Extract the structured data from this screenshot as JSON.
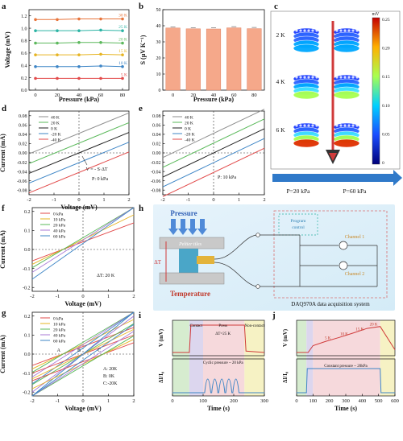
{
  "panels": {
    "a": {
      "letter": "a",
      "xlabel": "Pressure (kPa)",
      "ylabel": "Voltage (mV)",
      "xticks": [
        "0",
        "20",
        "40",
        "60",
        "80"
      ],
      "yticks": [
        "0.0",
        "0.2",
        "0.4",
        "0.6",
        "0.8",
        "1.0",
        "1.2"
      ],
      "series": [
        {
          "name": "30 K",
          "value": 1.14,
          "color": "#e8743b"
        },
        {
          "name": "25 K",
          "value": 0.96,
          "color": "#2bb3a4"
        },
        {
          "name": "20 K",
          "value": 0.76,
          "color": "#5cb85c"
        },
        {
          "name": "15 K",
          "value": 0.57,
          "color": "#e6b422"
        },
        {
          "name": "10 K",
          "value": 0.38,
          "color": "#3d85c6"
        },
        {
          "name": "5 K",
          "value": 0.19,
          "color": "#e24a4a"
        }
      ]
    },
    "b": {
      "letter": "b",
      "xlabel": "Pressure (kPa)",
      "ylabel": "S (μV K⁻¹)",
      "xticks": [
        "0",
        "20",
        "40",
        "60",
        "80"
      ],
      "yticks": [
        "0",
        "10",
        "20",
        "30",
        "40",
        "50"
      ],
      "values": [
        38.6,
        38.1,
        38.0,
        38.7,
        38.2
      ],
      "bar_color": "#f5a88a"
    },
    "c": {
      "letter": "c",
      "rows": [
        "2 K",
        "4 K",
        "6 K"
      ],
      "colorbar_title": "mV",
      "colorbar_ticks": [
        "0.25",
        "0.20",
        "0.15",
        "0.10",
        "0.05",
        "0"
      ],
      "left_caption": "P=20 kPa",
      "right_caption": "P=60 kPa"
    },
    "d": {
      "letter": "d",
      "xlabel": "Voltage (mV)",
      "ylabel": "Current (mA)",
      "xticks": [
        "-2",
        "-1",
        "0",
        "1",
        "2"
      ],
      "yticks": [
        "-0.08",
        "-0.06",
        "-0.04",
        "-0.02",
        "0.00",
        "0.02",
        "0.04",
        "0.06",
        "0.08"
      ],
      "legend": [
        "40 K",
        "20 K",
        "0 K",
        "-20 K",
        "-40 K"
      ],
      "annotation1": "V = - S·ΔT",
      "annotation2": "P: 0 kPa"
    },
    "e": {
      "letter": "e",
      "xlabel": "Voltage (mV)",
      "yticks": [
        "-0.08",
        "-0.06",
        "-0.04",
        "-0.02",
        "0.00",
        "0.02",
        "0.04",
        "0.06",
        "0.08"
      ],
      "xticks": [
        "-2",
        "-1",
        "0",
        "1",
        "2"
      ],
      "legend": [
        "40 K",
        "20 K",
        "0 K",
        "-20 K",
        "-40 K"
      ],
      "annotation": "P: 10 kPa"
    },
    "f": {
      "letter": "f",
      "xlabel": "Voltage (mV)",
      "ylabel": "Current (mA)",
      "xticks": [
        "-2",
        "-1",
        "0",
        "1",
        "2"
      ],
      "yticks": [
        "-0.2",
        "-0.1",
        "0.0",
        "0.1",
        "0.2"
      ],
      "legend": [
        "0 kPa",
        "10 kPa",
        "20 kPa",
        "40 kPa",
        "60 kPa"
      ],
      "annotation": "ΔT: 20 K"
    },
    "g": {
      "letter": "g",
      "xlabel": "Voltage (mV)",
      "ylabel": "Current (mA)",
      "xticks": [
        "-2",
        "-1",
        "0",
        "1",
        "2"
      ],
      "yticks": [
        "-0.2",
        "-0.1",
        "0.0",
        "0.1",
        "0.2"
      ],
      "legend": [
        "0 kPa",
        "10 kPa",
        "20 kPa",
        "40 kPa",
        "60 kPa"
      ],
      "point_labels": [
        "A",
        "B",
        "C"
      ],
      "notes": [
        "A: 20K",
        "B: 0K",
        "C:-20K"
      ]
    },
    "h": {
      "letter": "h",
      "pressure": "Pressure",
      "peltier": "Peltier tiles",
      "delta_t": "ΔT",
      "temperature": "Temperature",
      "program": [
        "Program",
        "control"
      ],
      "channel1": "Channel 1",
      "channel2": "Channel 2",
      "system": "DAQ970A data acquisition system"
    },
    "i": {
      "letter": "i",
      "xlabel": "Time (s)",
      "ylabel_top": "V (mV)",
      "ylabel_bottom": "ΔI/I₀",
      "xticks": [
        "0",
        "100",
        "200",
        "300"
      ],
      "phases": [
        "Contact",
        "Press",
        "Non-contact"
      ],
      "top_note": "ΔT=25 K",
      "bottom_note": "Cyclic pressure ~ 20 kPa"
    },
    "j": {
      "letter": "j",
      "xlabel": "Time (s)",
      "ylabel_top": "V (mV)",
      "ylabel_bottom": "ΔI/I₀",
      "xticks": [
        "0",
        "100",
        "200",
        "300",
        "400",
        "500",
        "600"
      ],
      "steps": [
        "5 K",
        "10 K",
        "15 K",
        "20 K"
      ],
      "bottom_note": "Constant pressure ~ 20kPa"
    }
  },
  "chart_data": [
    {
      "type": "line",
      "panel": "a",
      "x": [
        0,
        20,
        40,
        60,
        80
      ],
      "xlabel": "Pressure (kPa)",
      "ylabel": "Voltage (mV)",
      "ylim": [
        0,
        1.3
      ],
      "series": [
        {
          "name": "30 K",
          "values": [
            1.14,
            1.14,
            1.15,
            1.15,
            1.15
          ]
        },
        {
          "name": "25 K",
          "values": [
            0.96,
            0.96,
            0.96,
            0.97,
            0.96
          ]
        },
        {
          "name": "20 K",
          "values": [
            0.76,
            0.76,
            0.77,
            0.77,
            0.76
          ]
        },
        {
          "name": "15 K",
          "values": [
            0.57,
            0.57,
            0.57,
            0.58,
            0.57
          ]
        },
        {
          "name": "10 K",
          "values": [
            0.38,
            0.38,
            0.38,
            0.39,
            0.38
          ]
        },
        {
          "name": "5 K",
          "values": [
            0.19,
            0.19,
            0.19,
            0.19,
            0.19
          ]
        }
      ]
    },
    {
      "type": "bar",
      "panel": "b",
      "categories": [
        "0",
        "20",
        "40",
        "60",
        "80"
      ],
      "values": [
        38.6,
        38.1,
        38.0,
        38.7,
        38.2
      ],
      "xlabel": "Pressure (kPa)",
      "ylabel": "S (μV K⁻¹)",
      "ylim": [
        0,
        50
      ]
    },
    {
      "type": "line",
      "panel": "d",
      "xlim": [
        -2,
        2
      ],
      "ylim": [
        -0.09,
        0.09
      ],
      "series": [
        {
          "name": "40 K",
          "intercept": 0.042,
          "slope": 0.022
        },
        {
          "name": "20 K",
          "intercept": 0.021,
          "slope": 0.022
        },
        {
          "name": "0 K",
          "intercept": 0.0,
          "slope": 0.022
        },
        {
          "name": "-20 K",
          "intercept": -0.021,
          "slope": 0.022
        },
        {
          "name": "-40 K",
          "intercept": -0.042,
          "slope": 0.022
        }
      ]
    },
    {
      "type": "line",
      "panel": "e",
      "xlim": [
        -2,
        2
      ],
      "ylim": [
        -0.09,
        0.09
      ],
      "series": [
        {
          "name": "40 K",
          "intercept": 0.042,
          "slope": 0.026
        },
        {
          "name": "20 K",
          "intercept": 0.021,
          "slope": 0.026
        },
        {
          "name": "0 K",
          "intercept": 0.0,
          "slope": 0.026
        },
        {
          "name": "-20 K",
          "intercept": -0.021,
          "slope": 0.026
        },
        {
          "name": "-40 K",
          "intercept": -0.042,
          "slope": 0.026
        }
      ]
    },
    {
      "type": "line",
      "panel": "f",
      "xlim": [
        -2,
        2
      ],
      "ylim": [
        -0.22,
        0.22
      ],
      "pivot": [
        -0.8,
        0.0
      ],
      "series": [
        {
          "name": "0 kPa",
          "slope": 0.05
        },
        {
          "name": "10 kPa",
          "slope": 0.065
        },
        {
          "name": "20 kPa",
          "slope": 0.08
        },
        {
          "name": "40 kPa",
          "slope": 0.1
        },
        {
          "name": "60 kPa",
          "slope": 0.13
        }
      ]
    },
    {
      "type": "line",
      "panel": "g",
      "xlim": [
        -2,
        2
      ],
      "ylim": [
        -0.22,
        0.22
      ],
      "pivots": [
        [
          -0.8,
          0.0
        ],
        [
          0.0,
          0.0
        ],
        [
          0.8,
          0.0
        ]
      ],
      "series": [
        {
          "name": "0 kPa",
          "slope": 0.05
        },
        {
          "name": "10 kPa",
          "slope": 0.065
        },
        {
          "name": "20 kPa",
          "slope": 0.08
        },
        {
          "name": "40 kPa",
          "slope": 0.1
        },
        {
          "name": "60 kPa",
          "slope": 0.13
        }
      ]
    },
    {
      "type": "line",
      "panel": "i",
      "xlim": [
        0,
        300
      ],
      "top": {
        "name": "V",
        "x": [
          0,
          55,
          60,
          235,
          240,
          300
        ],
        "y": [
          0,
          0,
          1,
          1,
          0.05,
          0
        ]
      },
      "bottom": {
        "name": "ΔI/I₀",
        "pulses": [
          115,
          138,
          161,
          184,
          207
        ]
      }
    },
    {
      "type": "line",
      "panel": "j",
      "xlim": [
        0,
        600
      ],
      "top": {
        "name": "V",
        "x": [
          0,
          70,
          100,
          175,
          260,
          350,
          430,
          510,
          600
        ],
        "y": [
          0,
          0,
          0.25,
          0.4,
          0.55,
          0.72,
          0.88,
          0.95,
          0.1
        ]
      },
      "bottom": {
        "name": "ΔI/I₀",
        "x": [
          0,
          60,
          65,
          510,
          515,
          600
        ],
        "y": [
          0,
          0,
          1,
          1,
          0,
          0
        ]
      }
    }
  ]
}
